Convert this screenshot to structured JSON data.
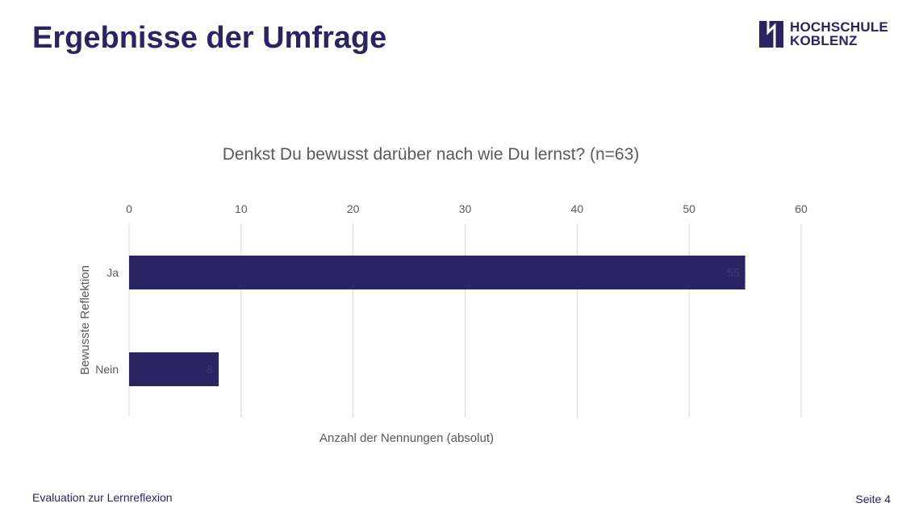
{
  "slide": {
    "title": "Ergebnisse der Umfrage",
    "footer_left": "Evaluation zur Lernreflexion",
    "footer_right": "Seite 4"
  },
  "logo": {
    "line1": "HOCHSCHULE",
    "line2": "KOBLENZ",
    "color": "#2b2464"
  },
  "chart_data": {
    "type": "bar",
    "orientation": "horizontal",
    "title": "Denkst Du bewusst darüber nach wie Du lernst? (n=63)",
    "categories": [
      "Ja",
      "Nein"
    ],
    "values": [
      55,
      8
    ],
    "data_labels": [
      "55",
      "8"
    ],
    "xlabel": "Anzahl der Nennungen (absolut)",
    "ylabel": "Bewusste Reflektion",
    "xlim": [
      0,
      60
    ],
    "xticks": [
      0,
      10,
      20,
      30,
      40,
      50,
      60
    ],
    "x_axis_position": "top",
    "grid": true,
    "legend": "none",
    "bar_color": "#2b2464",
    "grid_color": "#d9d9d9",
    "text_color": "#595959"
  }
}
